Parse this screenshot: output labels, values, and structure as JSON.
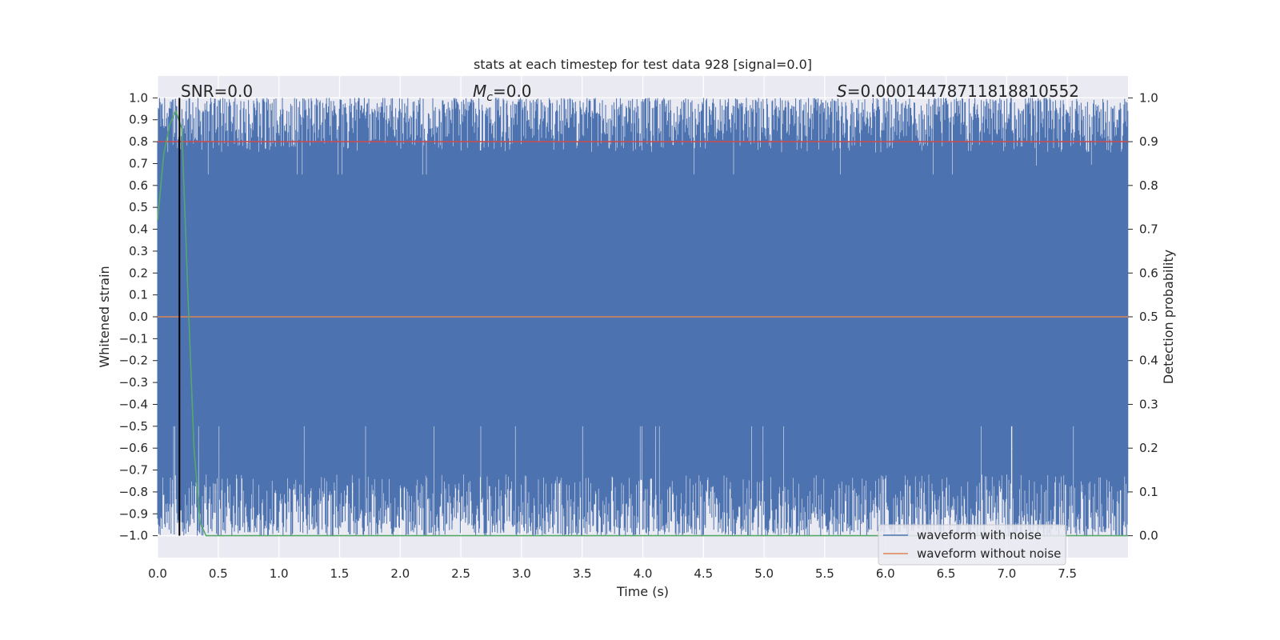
{
  "chart_data": {
    "type": "line",
    "title": "stats at each timestep for test data 928 [signal=0.0]",
    "xlabel": "Time (s)",
    "ylabel": "Whitened strain",
    "y2label": "Detection probability",
    "xlim": [
      0.0,
      8.0
    ],
    "ylim": [
      -1.1,
      1.1
    ],
    "y2lim": [
      -0.05,
      1.05
    ],
    "x_ticks": [
      0.0,
      0.5,
      1.0,
      1.5,
      2.0,
      2.5,
      3.0,
      3.5,
      4.0,
      4.5,
      5.0,
      5.5,
      6.0,
      6.5,
      7.0,
      7.5
    ],
    "x_tick_labels": [
      "0.0",
      "0.5",
      "1.0",
      "1.5",
      "2.0",
      "2.5",
      "3.0",
      "3.5",
      "4.0",
      "4.5",
      "5.0",
      "5.5",
      "6.0",
      "6.5",
      "7.0",
      "7.5"
    ],
    "y_ticks": [
      1.0,
      0.9,
      0.8,
      0.7,
      0.6,
      0.5,
      0.4,
      0.3,
      0.2,
      0.1,
      0.0,
      -0.1,
      -0.2,
      -0.3,
      -0.4,
      -0.5,
      -0.6,
      -0.7,
      -0.8,
      -0.9,
      -1.0
    ],
    "y_tick_labels": [
      "1.0",
      "0.9",
      "0.8",
      "0.7",
      "0.6",
      "0.5",
      "0.4",
      "0.3",
      "0.2",
      "0.1",
      "0.0",
      "−0.1",
      "−0.2",
      "−0.3",
      "−0.4",
      "−0.5",
      "−0.6",
      "−0.7",
      "−0.8",
      "−0.9",
      "−1.0"
    ],
    "y2_ticks": [
      1.0,
      0.9,
      0.8,
      0.7,
      0.6,
      0.5,
      0.4,
      0.3,
      0.2,
      0.1,
      0.0
    ],
    "y2_tick_labels": [
      "1.0",
      "0.9",
      "0.8",
      "0.7",
      "0.6",
      "0.5",
      "0.4",
      "0.3",
      "0.2",
      "0.1",
      "0.0"
    ],
    "grid": true,
    "legend_position": "lower-right",
    "annotations": {
      "snr": "SNR=0.0",
      "mc_symbol": "M",
      "mc_sub": "c",
      "mc_value": "=0.0",
      "s_symbol": "S",
      "s_value": "=0.00014478711818810552"
    },
    "series": [
      {
        "name": "waveform with noise",
        "color": "#4c72b0",
        "style": "dense noise filling [-1, 1]",
        "x_range": [
          0.0,
          8.0
        ],
        "value_range": [
          -1.0,
          1.0
        ]
      },
      {
        "name": "waveform without noise",
        "color": "#dd8452",
        "x": [
          0.0,
          8.0
        ],
        "y": [
          0.0,
          0.0
        ]
      },
      {
        "color": "#c44e52",
        "axis": "right",
        "x": [
          0.0,
          8.0
        ],
        "y": [
          0.9,
          0.9
        ]
      },
      {
        "color": "#55a868",
        "axis": "right",
        "x": [
          0.0,
          0.05,
          0.1,
          0.15,
          0.2,
          0.25,
          0.3,
          0.35,
          0.4,
          8.0
        ],
        "y": [
          0.72,
          0.87,
          0.94,
          0.97,
          0.93,
          0.55,
          0.2,
          0.03,
          0.0,
          0.0
        ]
      },
      {
        "color": "#000000",
        "axis": "left",
        "x": [
          0.18,
          0.18
        ],
        "y": [
          -1.0,
          1.0
        ]
      }
    ]
  }
}
